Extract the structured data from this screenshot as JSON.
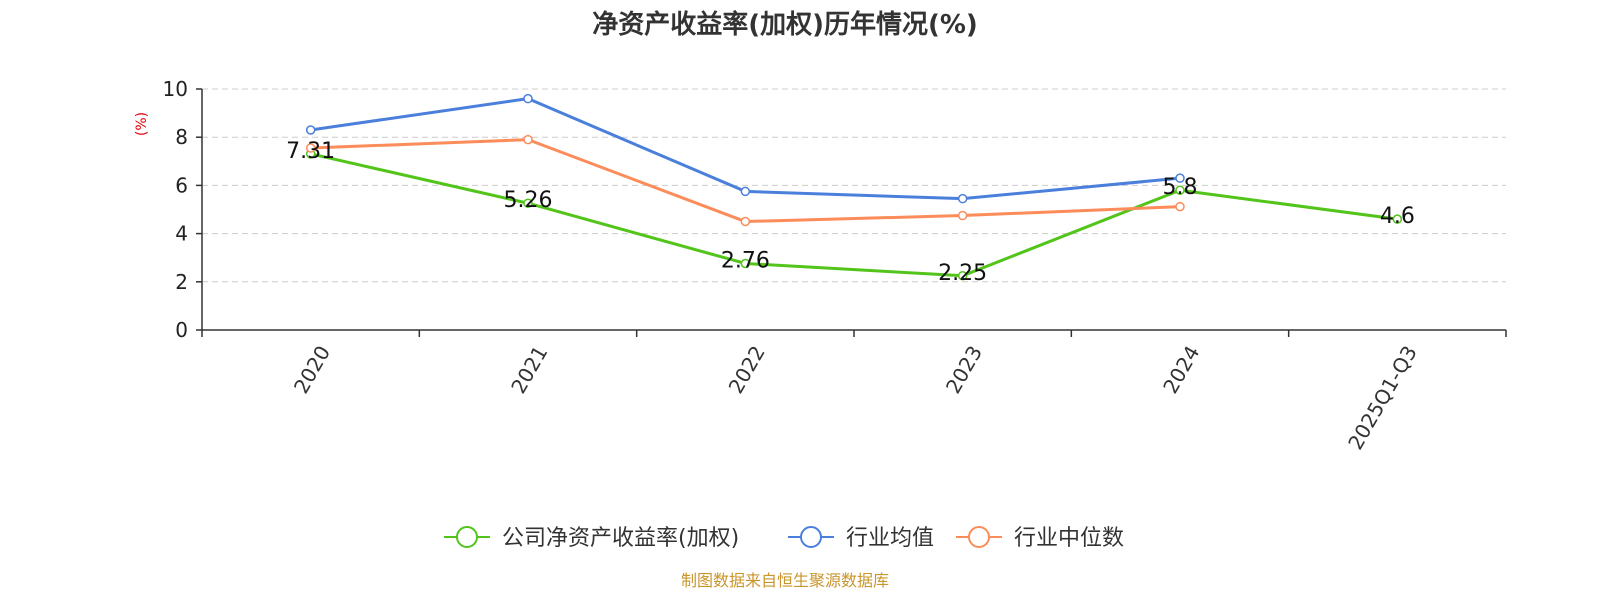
{
  "chart_data": {
    "type": "line",
    "title": "净资产收益率(加权)历年情况(%)",
    "ylabel": "(%)",
    "xlabel": "",
    "ylim": [
      0,
      10
    ],
    "yticks": [
      0,
      2,
      4,
      6,
      8,
      10
    ],
    "grid": true,
    "legend_position": "bottom",
    "categories": [
      "2020",
      "2021",
      "2022",
      "2023",
      "2024",
      "2025Q1-Q3"
    ],
    "series": [
      {
        "name": "公司净资产收益率(加权)",
        "color": "#52c41a",
        "values": [
          7.31,
          5.26,
          2.76,
          2.25,
          5.8,
          4.6
        ],
        "labels": [
          "7.31",
          "5.26",
          "2.76",
          "2.25",
          "5.8",
          "4.6"
        ]
      },
      {
        "name": "行业均值",
        "color": "#4a7fdc",
        "values": [
          8.3,
          9.6,
          5.75,
          5.45,
          6.3,
          null
        ]
      },
      {
        "name": "行业中位数",
        "color": "#fc8c5a",
        "values": [
          7.55,
          7.9,
          4.5,
          4.75,
          5.12,
          null
        ]
      }
    ],
    "source": "制图数据来自恒生聚源数据库"
  }
}
